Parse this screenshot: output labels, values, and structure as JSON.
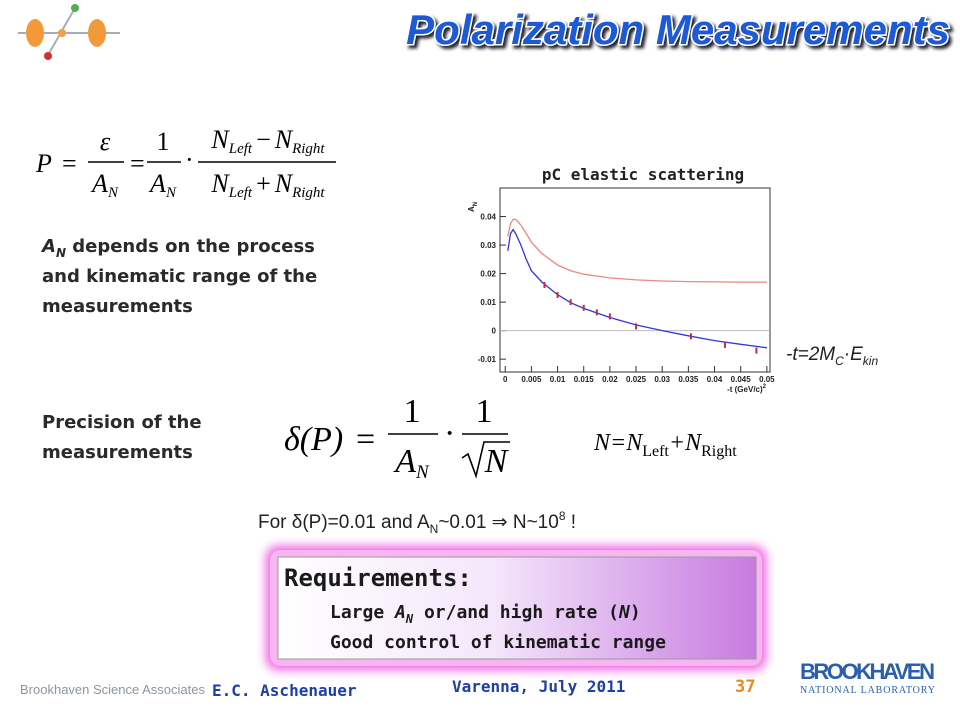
{
  "header": {
    "title": "Polarization Measurements"
  },
  "formula_p": {
    "P": "P",
    "eq": "=",
    "eps": "ε",
    "one": "1",
    "A": "A",
    "N": "N",
    "dot": "·",
    "minus": "−",
    "plus": "+",
    "left": "Left",
    "right": "Right"
  },
  "an_note": {
    "A": "A",
    "sub": "N",
    "lines": [
      " depends on the process",
      "and kinematic range of the",
      "measurements"
    ]
  },
  "precision": {
    "lines": [
      "Precision of the",
      "measurements"
    ]
  },
  "formula_dp": {
    "lhs": "δ(P)",
    "eq": "=",
    "one": "1",
    "A": "A",
    "N": "N",
    "dot": "·"
  },
  "n_def": {
    "a": "N=N",
    "sub1": "Left",
    "b": "+N",
    "sub2": "Right"
  },
  "t_def": {
    "a": "-t=2M",
    "sub1": "C",
    "b": "·E",
    "sub2": "kin"
  },
  "for_line": {
    "a": "For δ(P)=0.01 and A",
    "sub": "N",
    "b": "~0.01 ⇒ N~10",
    "sup": "8",
    "c": " !"
  },
  "requirements": {
    "title": "Requirements:",
    "line1": {
      "a": "Large ",
      "A": "A",
      "sub": "N",
      "b": " or/and high rate (",
      "N": "N",
      "c": ")"
    },
    "line2": "Good control of kinematic range"
  },
  "plot": {
    "title": "pC elastic scattering",
    "y_label": {
      "text": "A",
      "sub": "N"
    },
    "x_label": {
      "text": "-t (GeV/c)",
      "sup": "2"
    },
    "xlim": [
      -0.001,
      0.0506
    ],
    "ylim": [
      -0.0145,
      0.05
    ],
    "xticks": [
      0,
      0.005,
      0.01,
      0.015,
      0.02,
      0.025,
      0.03,
      0.035,
      0.04,
      0.045,
      0.05
    ],
    "yticks": [
      -0.01,
      0,
      0.01,
      0.02,
      0.03,
      0.04
    ],
    "curves": [
      {
        "color": "#ec8a80",
        "x": [
          0.0005,
          0.001,
          0.0015,
          0.002,
          0.003,
          0.004,
          0.005,
          0.007,
          0.01,
          0.0125,
          0.015,
          0.02,
          0.025,
          0.03,
          0.035,
          0.04,
          0.045,
          0.05
        ],
        "values": [
          0.033,
          0.0375,
          0.039,
          0.039,
          0.037,
          0.034,
          0.031,
          0.027,
          0.023,
          0.021,
          0.0198,
          0.0185,
          0.0178,
          0.0174,
          0.0172,
          0.0171,
          0.017,
          0.017
        ]
      },
      {
        "color": "#3434e0",
        "x": [
          0.0005,
          0.001,
          0.0015,
          0.002,
          0.003,
          0.004,
          0.005,
          0.007,
          0.01,
          0.0125,
          0.015,
          0.02,
          0.025,
          0.03,
          0.035,
          0.04,
          0.045,
          0.05
        ],
        "values": [
          0.028,
          0.034,
          0.0354,
          0.034,
          0.03,
          0.025,
          0.021,
          0.017,
          0.0126,
          0.0098,
          0.0078,
          0.0046,
          0.002,
          0,
          -0.0018,
          -0.0035,
          -0.0048,
          -0.006
        ]
      }
    ],
    "points": {
      "color": "#c0303a",
      "x": [
        0.0075,
        0.01,
        0.0125,
        0.015,
        0.0175,
        0.02,
        0.025,
        0.0355,
        0.042,
        0.048
      ],
      "values": [
        0.016,
        0.0125,
        0.01,
        0.008,
        0.0064,
        0.005,
        0.0015,
        -0.002,
        -0.005,
        -0.007
      ]
    }
  },
  "footer": {
    "org": "Brookhaven Science Associates",
    "author": "E.C. Aschenauer",
    "venue": "Varenna, July 2011",
    "page": "37",
    "logo_top": "BROOKHAVEN",
    "logo_bottom": "NATIONAL LABORATORY"
  }
}
